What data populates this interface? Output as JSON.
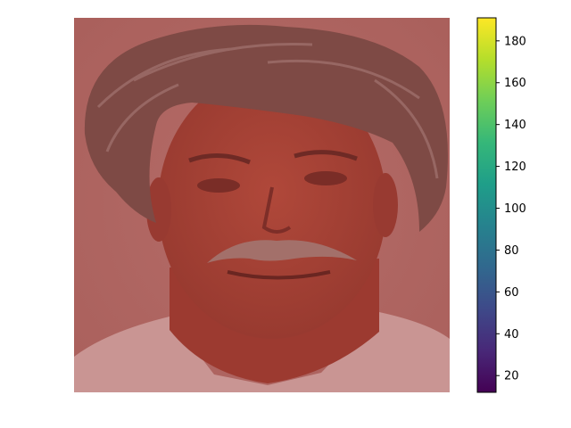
{
  "chart_data": {
    "type": "heatmap",
    "title": "",
    "xlabel": "",
    "ylabel": "",
    "axes_visible": false,
    "image_content": "portrait-photo-with-red-overlay",
    "overlay_tint": "#a0403a",
    "colorbar": {
      "colormap": "viridis",
      "orientation": "vertical",
      "placement": "right",
      "vmin": 12,
      "vmax": 191,
      "ticks": [
        20,
        40,
        60,
        80,
        100,
        120,
        140,
        160,
        180
      ],
      "tick_labels": [
        "20",
        "40",
        "60",
        "80",
        "100",
        "120",
        "140",
        "160",
        "180"
      ],
      "colors": [
        "#440154",
        "#482878",
        "#3e4989",
        "#31688e",
        "#26828e",
        "#1f9e89",
        "#35b779",
        "#6ece58",
        "#b5de2b",
        "#fde725"
      ]
    }
  }
}
